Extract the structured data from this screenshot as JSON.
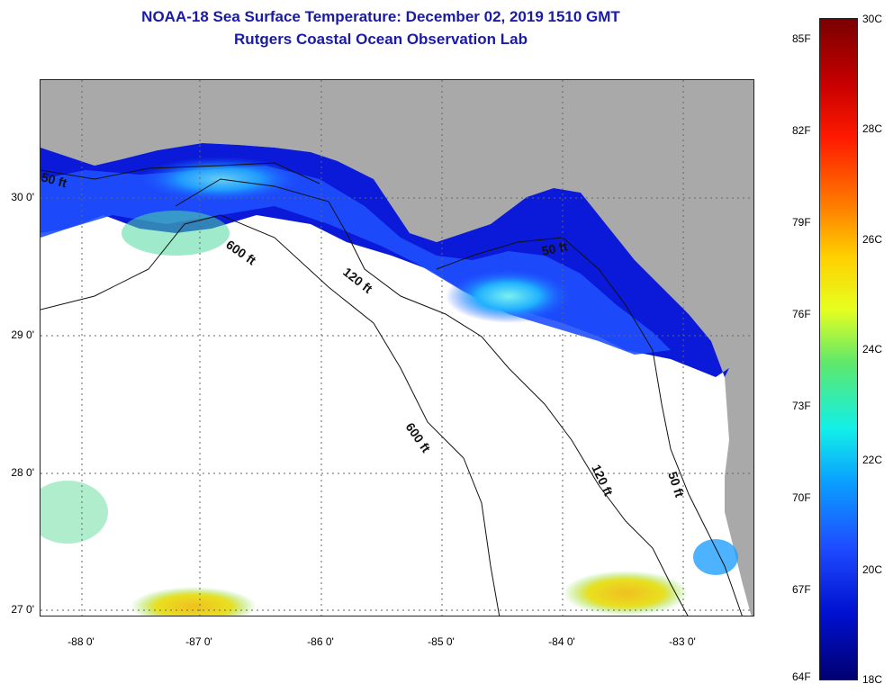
{
  "title_line1": "NOAA-18 Sea Surface Temperature:  December 02, 2019 1510 GMT",
  "title_line2": "Rutgers Coastal Ocean Observation Lab",
  "lat_labels": [
    "30 0'",
    "29 0'",
    "28 0'",
    "27 0'"
  ],
  "lon_labels": [
    "-88 0'",
    "-87 0'",
    "-86 0'",
    "-85 0'",
    "-84 0'",
    "-83 0'"
  ],
  "contours": [
    "50 ft",
    "600 ft",
    "120 ft",
    "50 ft",
    "600 ft",
    "120 ft",
    "50 ft"
  ],
  "colorbar_f": [
    "85F",
    "82F",
    "79F",
    "76F",
    "73F",
    "70F",
    "67F",
    "64F"
  ],
  "colorbar_c": [
    "30C",
    "28C",
    "26C",
    "24C",
    "22C",
    "20C",
    "18C"
  ],
  "colors": {
    "land": "#a9a9a9",
    "title": "#1a1aa8",
    "deep_blue": "#0010c0",
    "mid_blue": "#1e50ff",
    "cyan": "#20d8f0",
    "green": "#60e070",
    "yellow": "#e8e820",
    "orange": "#f0a020"
  }
}
